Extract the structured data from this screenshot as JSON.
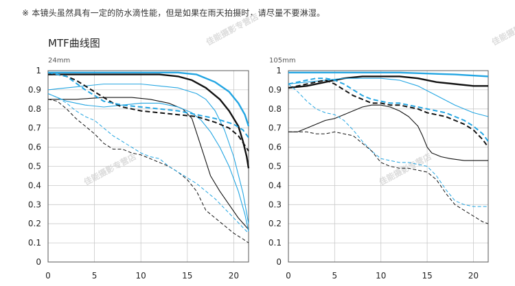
{
  "note": "※ 本镜头虽然具有一定的防水滴性能，但是如果在雨天拍摄时，请尽量不要淋湿。",
  "section_title": "MTF曲线图",
  "watermark": "佳能摄影专营店",
  "colors": {
    "black": "#111111",
    "blue": "#22a5e2",
    "grid": "#c9c9c9",
    "axis": "#555555"
  },
  "chart_data": [
    {
      "type": "line",
      "title": "24mm",
      "xlabel": "",
      "ylabel": "",
      "xlim": [
        0,
        21.6
      ],
      "ylim": [
        0,
        1
      ],
      "xticks": [
        0,
        5,
        10,
        15,
        20
      ],
      "yticks": [
        0,
        0.1,
        0.2,
        0.3,
        0.4,
        0.5,
        0.6,
        0.7,
        0.8,
        0.9,
        1
      ],
      "grid": true,
      "series": [
        {
          "color": "black",
          "width": 2.4,
          "dash": false,
          "x": [
            0,
            3,
            6,
            9,
            12,
            14,
            15.5,
            17,
            18.5,
            19.5,
            20.5,
            21,
            21.4,
            21.6
          ],
          "y": [
            0.98,
            0.98,
            0.98,
            0.98,
            0.98,
            0.97,
            0.95,
            0.91,
            0.85,
            0.79,
            0.71,
            0.63,
            0.55,
            0.49
          ]
        },
        {
          "color": "blue",
          "width": 2.4,
          "dash": false,
          "x": [
            0,
            3,
            6,
            9,
            12,
            14,
            16,
            18,
            19.5,
            20.5,
            21.2,
            21.6
          ],
          "y": [
            0.99,
            0.99,
            0.99,
            0.99,
            0.99,
            0.99,
            0.98,
            0.94,
            0.89,
            0.83,
            0.77,
            0.71
          ]
        },
        {
          "color": "black",
          "width": 1.1,
          "dash": false,
          "x": [
            0,
            3,
            6,
            9,
            11,
            13,
            14.5,
            15.5,
            16.5,
            17.5,
            18.5,
            19.5,
            20.5,
            21.6
          ],
          "y": [
            0.85,
            0.85,
            0.86,
            0.86,
            0.85,
            0.83,
            0.8,
            0.75,
            0.6,
            0.45,
            0.37,
            0.3,
            0.23,
            0.17
          ]
        },
        {
          "color": "blue",
          "width": 1.1,
          "dash": false,
          "x": [
            0,
            2,
            4,
            6,
            8,
            10,
            12,
            14,
            16,
            17,
            18,
            19,
            20,
            21,
            21.6
          ],
          "y": [
            0.9,
            0.91,
            0.92,
            0.93,
            0.93,
            0.93,
            0.92,
            0.91,
            0.88,
            0.85,
            0.79,
            0.69,
            0.55,
            0.36,
            0.2
          ]
        },
        {
          "color": "blue",
          "width": 1.1,
          "dash": false,
          "x": [
            0,
            1,
            2,
            4,
            6,
            8,
            10,
            12,
            14,
            15.5,
            16.5,
            17.5,
            18.5,
            19.5,
            20.5,
            21.2,
            21.6
          ],
          "y": [
            0.88,
            0.86,
            0.84,
            0.82,
            0.81,
            0.82,
            0.83,
            0.83,
            0.81,
            0.78,
            0.74,
            0.68,
            0.6,
            0.5,
            0.37,
            0.25,
            0.16
          ]
        },
        {
          "color": "black",
          "width": 2.0,
          "dash": true,
          "x": [
            0,
            1,
            2,
            3,
            4,
            5,
            6,
            7,
            8,
            10,
            12,
            14,
            16,
            18,
            19.5,
            20.5,
            21.6
          ],
          "y": [
            0.98,
            0.98,
            0.97,
            0.95,
            0.92,
            0.89,
            0.86,
            0.83,
            0.81,
            0.79,
            0.78,
            0.77,
            0.76,
            0.73,
            0.7,
            0.66,
            0.58
          ]
        },
        {
          "color": "blue",
          "width": 2.0,
          "dash": true,
          "x": [
            0,
            2,
            4,
            6,
            8,
            10,
            12,
            14,
            16,
            18,
            20,
            21,
            21.6
          ],
          "y": [
            0.99,
            0.97,
            0.9,
            0.84,
            0.82,
            0.81,
            0.8,
            0.79,
            0.77,
            0.75,
            0.72,
            0.69,
            0.65
          ]
        },
        {
          "color": "black",
          "width": 1.0,
          "dash": true,
          "x": [
            0,
            1,
            2,
            3,
            4,
            5,
            6,
            7,
            8,
            9,
            10,
            11,
            12,
            13,
            14,
            15,
            16,
            17,
            18,
            19,
            20,
            21,
            21.6
          ],
          "y": [
            0.85,
            0.84,
            0.8,
            0.75,
            0.71,
            0.67,
            0.62,
            0.59,
            0.59,
            0.57,
            0.56,
            0.54,
            0.52,
            0.5,
            0.47,
            0.43,
            0.37,
            0.27,
            0.23,
            0.19,
            0.15,
            0.12,
            0.1
          ]
        },
        {
          "color": "blue",
          "width": 1.0,
          "dash": true,
          "x": [
            0,
            1,
            2,
            3,
            4,
            5,
            6,
            7,
            8,
            9,
            10,
            11,
            12,
            13,
            14,
            15,
            16,
            17,
            18,
            19,
            20,
            21,
            21.6
          ],
          "y": [
            0.88,
            0.86,
            0.83,
            0.79,
            0.76,
            0.74,
            0.7,
            0.66,
            0.63,
            0.6,
            0.57,
            0.55,
            0.54,
            0.5,
            0.47,
            0.44,
            0.41,
            0.37,
            0.33,
            0.28,
            0.23,
            0.18,
            0.15
          ]
        }
      ]
    },
    {
      "type": "line",
      "title": "105mm",
      "xlabel": "",
      "ylabel": "",
      "xlim": [
        0,
        21.6
      ],
      "ylim": [
        0,
        1
      ],
      "xticks": [
        0,
        5,
        10,
        15,
        20
      ],
      "yticks": [
        0,
        0.1,
        0.2,
        0.3,
        0.4,
        0.5,
        0.6,
        0.7,
        0.8,
        0.9,
        1
      ],
      "grid": true,
      "series": [
        {
          "color": "blue",
          "width": 2.4,
          "dash": false,
          "x": [
            0,
            3,
            6,
            9,
            12,
            15,
            18,
            21.6
          ],
          "y": [
            0.99,
            0.99,
            0.99,
            0.99,
            0.99,
            0.985,
            0.98,
            0.97
          ]
        },
        {
          "color": "black",
          "width": 2.4,
          "dash": false,
          "x": [
            0,
            2,
            4,
            6,
            8,
            10,
            12,
            14,
            16,
            18,
            20,
            21.6
          ],
          "y": [
            0.91,
            0.92,
            0.94,
            0.96,
            0.97,
            0.97,
            0.97,
            0.96,
            0.94,
            0.93,
            0.92,
            0.92
          ]
        },
        {
          "color": "blue",
          "width": 1.1,
          "dash": false,
          "x": [
            0,
            2,
            4,
            6,
            8,
            10,
            12,
            14,
            16,
            18,
            20,
            21.6
          ],
          "y": [
            0.93,
            0.94,
            0.95,
            0.96,
            0.96,
            0.96,
            0.95,
            0.92,
            0.87,
            0.82,
            0.78,
            0.76
          ]
        },
        {
          "color": "black",
          "width": 1.1,
          "dash": false,
          "x": [
            0,
            1,
            2,
            3,
            4,
            5,
            6,
            7,
            8,
            9,
            10,
            11,
            12,
            13,
            14,
            14.5,
            15,
            15.5,
            16.5,
            17.5,
            19,
            20.5,
            21.6
          ],
          "y": [
            0.68,
            0.68,
            0.7,
            0.72,
            0.74,
            0.75,
            0.77,
            0.79,
            0.81,
            0.82,
            0.82,
            0.81,
            0.79,
            0.76,
            0.71,
            0.66,
            0.6,
            0.57,
            0.55,
            0.54,
            0.53,
            0.53,
            0.53
          ]
        },
        {
          "color": "black",
          "width": 2.0,
          "dash": true,
          "x": [
            0,
            1,
            2,
            3,
            4,
            5,
            6,
            7,
            8,
            9,
            10,
            11,
            12,
            13,
            14,
            15,
            16,
            17,
            18,
            19,
            20,
            21,
            21.6
          ],
          "y": [
            0.91,
            0.92,
            0.93,
            0.94,
            0.95,
            0.93,
            0.9,
            0.87,
            0.85,
            0.83,
            0.83,
            0.82,
            0.82,
            0.81,
            0.8,
            0.78,
            0.77,
            0.76,
            0.74,
            0.72,
            0.69,
            0.64,
            0.6
          ]
        },
        {
          "color": "blue",
          "width": 2.0,
          "dash": true,
          "x": [
            0,
            1,
            2,
            3,
            4,
            5,
            6,
            7,
            8,
            9,
            10,
            11,
            12,
            13,
            14,
            15,
            16,
            17,
            18,
            19,
            20,
            21,
            21.6
          ],
          "y": [
            0.93,
            0.94,
            0.95,
            0.96,
            0.96,
            0.95,
            0.93,
            0.9,
            0.87,
            0.85,
            0.84,
            0.83,
            0.83,
            0.82,
            0.81,
            0.8,
            0.79,
            0.78,
            0.76,
            0.74,
            0.71,
            0.67,
            0.63
          ]
        },
        {
          "color": "blue",
          "width": 1.0,
          "dash": true,
          "x": [
            0,
            1,
            2,
            3,
            4,
            5,
            6,
            7,
            8,
            9,
            10,
            11,
            12,
            13,
            14,
            15,
            16,
            17,
            18,
            19,
            20,
            21,
            21.6
          ],
          "y": [
            0.93,
            0.89,
            0.84,
            0.8,
            0.78,
            0.77,
            0.74,
            0.69,
            0.63,
            0.58,
            0.54,
            0.53,
            0.52,
            0.52,
            0.51,
            0.5,
            0.45,
            0.38,
            0.32,
            0.3,
            0.29,
            0.29,
            0.29
          ]
        },
        {
          "color": "black",
          "width": 1.0,
          "dash": true,
          "x": [
            0,
            1,
            2,
            3,
            4,
            5,
            6,
            7,
            8,
            9,
            10,
            11,
            12,
            13,
            14,
            15,
            16,
            17,
            18,
            19,
            20,
            21,
            21.6
          ],
          "y": [
            0.68,
            0.68,
            0.68,
            0.67,
            0.67,
            0.68,
            0.67,
            0.66,
            0.62,
            0.58,
            0.52,
            0.5,
            0.49,
            0.49,
            0.48,
            0.47,
            0.43,
            0.36,
            0.3,
            0.27,
            0.24,
            0.21,
            0.2
          ]
        }
      ]
    }
  ]
}
